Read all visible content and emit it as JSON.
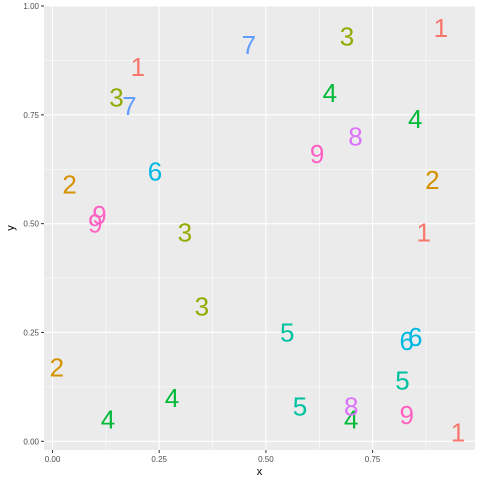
{
  "chart_data": {
    "type": "scatter",
    "xlabel": "x",
    "ylabel": "y",
    "xlim": [
      -0.02,
      0.99
    ],
    "ylim": [
      -0.02,
      1.0
    ],
    "x_ticks": [
      0.0,
      0.25,
      0.5,
      0.75
    ],
    "x_tick_labels": [
      "0.00",
      "0.25",
      "0.50",
      "0.75"
    ],
    "y_ticks": [
      0.0,
      0.25,
      0.5,
      0.75,
      1.0
    ],
    "y_tick_labels": [
      "0.00",
      "0.25",
      "0.50",
      "0.75",
      "1.00"
    ],
    "grid": true,
    "legend": "none",
    "panel_background": "#EBEBEB",
    "label_colors": {
      "1": "#F8766D",
      "2": "#D39200",
      "3": "#93AA00",
      "4": "#00BA38",
      "5": "#00C19F",
      "6": "#00B9E3",
      "7": "#619CFF",
      "8": "#DB72FB",
      "9": "#FF61C3"
    },
    "points": [
      {
        "label": "1",
        "x": 0.91,
        "y": 0.95
      },
      {
        "label": "1",
        "x": 0.2,
        "y": 0.86
      },
      {
        "label": "1",
        "x": 0.87,
        "y": 0.48
      },
      {
        "label": "1",
        "x": 0.95,
        "y": 0.02
      },
      {
        "label": "2",
        "x": 0.04,
        "y": 0.59
      },
      {
        "label": "2",
        "x": 0.89,
        "y": 0.6
      },
      {
        "label": "2",
        "x": 0.01,
        "y": 0.17
      },
      {
        "label": "3",
        "x": 0.69,
        "y": 0.93
      },
      {
        "label": "3",
        "x": 0.15,
        "y": 0.79
      },
      {
        "label": "3",
        "x": 0.31,
        "y": 0.48
      },
      {
        "label": "3",
        "x": 0.35,
        "y": 0.31
      },
      {
        "label": "4",
        "x": 0.65,
        "y": 0.8
      },
      {
        "label": "4",
        "x": 0.85,
        "y": 0.74
      },
      {
        "label": "4",
        "x": 0.28,
        "y": 0.1
      },
      {
        "label": "4",
        "x": 0.13,
        "y": 0.05
      },
      {
        "label": "4",
        "x": 0.7,
        "y": 0.05
      },
      {
        "label": "5",
        "x": 0.55,
        "y": 0.25
      },
      {
        "label": "5",
        "x": 0.82,
        "y": 0.14
      },
      {
        "label": "5",
        "x": 0.58,
        "y": 0.08
      },
      {
        "label": "6",
        "x": 0.24,
        "y": 0.62
      },
      {
        "label": "6",
        "x": 0.85,
        "y": 0.24
      },
      {
        "label": "6",
        "x": 0.83,
        "y": 0.23
      },
      {
        "label": "7",
        "x": 0.46,
        "y": 0.91
      },
      {
        "label": "7",
        "x": 0.18,
        "y": 0.77
      },
      {
        "label": "8",
        "x": 0.71,
        "y": 0.7
      },
      {
        "label": "8",
        "x": 0.7,
        "y": 0.08
      },
      {
        "label": "9",
        "x": 0.62,
        "y": 0.66
      },
      {
        "label": "9",
        "x": 0.11,
        "y": 0.52
      },
      {
        "label": "9",
        "x": 0.1,
        "y": 0.5
      },
      {
        "label": "9",
        "x": 0.83,
        "y": 0.06
      }
    ]
  }
}
